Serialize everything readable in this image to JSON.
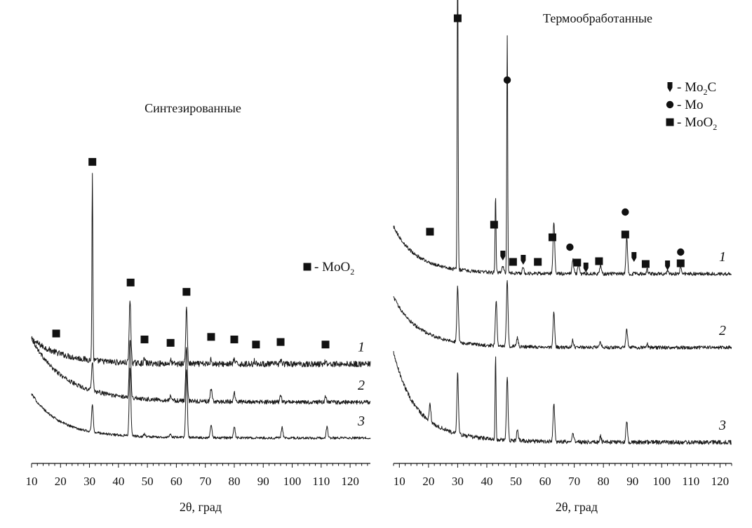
{
  "colors": {
    "ink": "#1a1a1a",
    "background": "#ffffff"
  },
  "chart_data": [
    {
      "type": "line",
      "title": "Синтезированные",
      "xlabel": "2θ, град",
      "ylabel": "",
      "xlim": [
        10,
        127
      ],
      "xticks": [
        10,
        20,
        30,
        40,
        50,
        60,
        70,
        80,
        90,
        100,
        110,
        120
      ],
      "legend": [
        {
          "marker": "square",
          "label": "- MoO",
          "sub": "2"
        }
      ],
      "series": [
        {
          "name": "1",
          "baseline": 4.5,
          "background": [
            {
              "amp": 1.2,
              "center": 10,
              "width": 10
            },
            {
              "amp": 0.5,
              "center": 25,
              "width": 12
            }
          ],
          "noise": 0.35,
          "peaks": [
            {
              "x": 31.0,
              "h": 22.0
            },
            {
              "x": 44.0,
              "h": 7.5
            },
            {
              "x": 63.5,
              "h": 6.5
            },
            {
              "x": 49.0,
              "h": 0.5
            },
            {
              "x": 58.0,
              "h": 0.4
            },
            {
              "x": 72.0,
              "h": 0.6
            },
            {
              "x": 80.0,
              "h": 0.5
            },
            {
              "x": 87.0,
              "h": 0.4
            },
            {
              "x": 96.0,
              "h": 0.5
            },
            {
              "x": 111.5,
              "h": 0.4
            }
          ],
          "markers": [
            {
              "x": 18.5,
              "h": 3.6,
              "type": "square"
            },
            {
              "x": 31.0,
              "h": 23.8,
              "type": "square"
            },
            {
              "x": 44.2,
              "h": 9.6,
              "type": "square"
            },
            {
              "x": 49.0,
              "h": 2.9,
              "type": "square"
            },
            {
              "x": 58.0,
              "h": 2.5,
              "type": "square"
            },
            {
              "x": 63.5,
              "h": 8.5,
              "type": "square"
            },
            {
              "x": 72.0,
              "h": 3.2,
              "type": "square"
            },
            {
              "x": 80.0,
              "h": 2.9,
              "type": "square"
            },
            {
              "x": 87.5,
              "h": 2.3,
              "type": "square"
            },
            {
              "x": 96.0,
              "h": 2.6,
              "type": "square"
            },
            {
              "x": 111.5,
              "h": 2.3,
              "type": "square"
            }
          ]
        },
        {
          "name": "2",
          "baseline": 0.0,
          "background": [
            {
              "amp": 4.5,
              "center": 10,
              "width": 9
            },
            {
              "amp": 1.0,
              "center": 30,
              "width": 18
            }
          ],
          "noise": 0.25,
          "peaks": [
            {
              "x": 31.0,
              "h": 3.5
            },
            {
              "x": 44.0,
              "h": 7.0
            },
            {
              "x": 63.5,
              "h": 6.5
            },
            {
              "x": 72.0,
              "h": 1.5
            },
            {
              "x": 80.0,
              "h": 1.1
            },
            {
              "x": 96.0,
              "h": 0.7
            },
            {
              "x": 111.5,
              "h": 0.7
            },
            {
              "x": 58.0,
              "h": 0.5
            }
          ],
          "markers": []
        },
        {
          "name": "3",
          "baseline": -4.2,
          "background": [
            {
              "amp": 3.2,
              "center": 10,
              "width": 8
            },
            {
              "amp": 0.6,
              "center": 28,
              "width": 15
            }
          ],
          "noise": 0.15,
          "peaks": [
            {
              "x": 31.0,
              "h": 3.2
            },
            {
              "x": 44.0,
              "h": 8.0
            },
            {
              "x": 63.5,
              "h": 8.0
            },
            {
              "x": 72.0,
              "h": 1.6
            },
            {
              "x": 80.0,
              "h": 1.4
            },
            {
              "x": 96.5,
              "h": 1.3
            },
            {
              "x": 112.0,
              "h": 1.3
            },
            {
              "x": 58.0,
              "h": 0.4
            },
            {
              "x": 49.0,
              "h": 0.3
            }
          ],
          "markers": []
        }
      ]
    },
    {
      "type": "line",
      "title": "Термообработанные",
      "xlabel": "2θ, град",
      "ylabel": "",
      "xlim": [
        8,
        124
      ],
      "xticks": [
        10,
        20,
        30,
        40,
        50,
        60,
        70,
        80,
        90,
        100,
        110,
        120
      ],
      "legend": [
        {
          "marker": "arrow",
          "label": "- Mo",
          "sub": "2",
          "suffix": "C"
        },
        {
          "marker": "circle",
          "label": "- Mo",
          "sub": "",
          "suffix": ""
        },
        {
          "marker": "square",
          "label": "- MoO",
          "sub": "2",
          "suffix": ""
        }
      ],
      "series": [
        {
          "name": "1",
          "baseline": 10.5,
          "background": [
            {
              "amp": 3.5,
              "center": 8,
              "width": 6
            },
            {
              "amp": 1.2,
              "center": 20,
              "width": 12
            }
          ],
          "noise": 0.25,
          "peaks": [
            {
              "x": 30.0,
              "h": 46.0
            },
            {
              "x": 43.0,
              "h": 11.0
            },
            {
              "x": 47.0,
              "h": 34.0
            },
            {
              "x": 63.0,
              "h": 7.5
            },
            {
              "x": 88.0,
              "h": 5.2
            },
            {
              "x": 69.5,
              "h": 2.0
            },
            {
              "x": 71.5,
              "h": 1.5
            },
            {
              "x": 79.0,
              "h": 1.3
            },
            {
              "x": 45.5,
              "h": 1.0
            },
            {
              "x": 52.5,
              "h": 0.8
            },
            {
              "x": 95.0,
              "h": 0.6
            },
            {
              "x": 106.5,
              "h": 1.0
            },
            {
              "x": 102.0,
              "h": 0.5
            }
          ],
          "markers": [
            {
              "x": 20.5,
              "h": 6.0,
              "type": "square"
            },
            {
              "x": 42.5,
              "h": 7.0,
              "type": "square"
            },
            {
              "x": 62.5,
              "h": 5.2,
              "type": "square"
            },
            {
              "x": 30.0,
              "h": 36.4,
              "type": "square"
            },
            {
              "x": 47.0,
              "h": 27.6,
              "type": "circle"
            },
            {
              "x": 45.5,
              "h": 2.6,
              "type": "arrow"
            },
            {
              "x": 49.0,
              "h": 1.7,
              "type": "square"
            },
            {
              "x": 52.5,
              "h": 2.0,
              "type": "arrow"
            },
            {
              "x": 57.5,
              "h": 1.7,
              "type": "square"
            },
            {
              "x": 68.5,
              "h": 3.8,
              "type": "circle"
            },
            {
              "x": 71.0,
              "h": 1.6,
              "type": "square"
            },
            {
              "x": 74.0,
              "h": 0.9,
              "type": "arrow"
            },
            {
              "x": 78.5,
              "h": 1.8,
              "type": "square"
            },
            {
              "x": 87.5,
              "h": 8.8,
              "type": "circle"
            },
            {
              "x": 87.5,
              "h": 5.6,
              "type": "square"
            },
            {
              "x": 90.5,
              "h": 2.4,
              "type": "arrow"
            },
            {
              "x": 94.5,
              "h": 1.4,
              "type": "square"
            },
            {
              "x": 102.0,
              "h": 1.2,
              "type": "arrow"
            },
            {
              "x": 106.5,
              "h": 3.1,
              "type": "circle"
            },
            {
              "x": 106.5,
              "h": 1.5,
              "type": "square"
            }
          ]
        },
        {
          "name": "2",
          "baseline": 0.0,
          "background": [
            {
              "amp": 4.5,
              "center": 8,
              "width": 7
            },
            {
              "amp": 1.0,
              "center": 22,
              "width": 14
            }
          ],
          "noise": 0.25,
          "peaks": [
            {
              "x": 30.0,
              "h": 8.0
            },
            {
              "x": 43.2,
              "h": 6.5
            },
            {
              "x": 47.0,
              "h": 9.5
            },
            {
              "x": 63.0,
              "h": 5.0
            },
            {
              "x": 88.0,
              "h": 2.5
            },
            {
              "x": 50.5,
              "h": 1.3
            },
            {
              "x": 69.5,
              "h": 1.0
            },
            {
              "x": 79.0,
              "h": 0.8
            },
            {
              "x": 95.0,
              "h": 0.5
            }
          ],
          "markers": []
        },
        {
          "name": "3",
          "baseline": -13.5,
          "background": [
            {
              "amp": 8.0,
              "center": 8,
              "width": 6
            },
            {
              "amp": 1.8,
              "center": 22,
              "width": 14
            }
          ],
          "noise": 0.3,
          "peaks": [
            {
              "x": 30.0,
              "h": 8.5
            },
            {
              "x": 43.0,
              "h": 12.0
            },
            {
              "x": 47.0,
              "h": 9.0
            },
            {
              "x": 63.0,
              "h": 5.5
            },
            {
              "x": 88.0,
              "h": 3.0
            },
            {
              "x": 20.5,
              "h": 2.5
            },
            {
              "x": 50.5,
              "h": 1.5
            },
            {
              "x": 69.5,
              "h": 1.2
            },
            {
              "x": 79.0,
              "h": 0.9
            }
          ],
          "markers": []
        }
      ]
    }
  ]
}
